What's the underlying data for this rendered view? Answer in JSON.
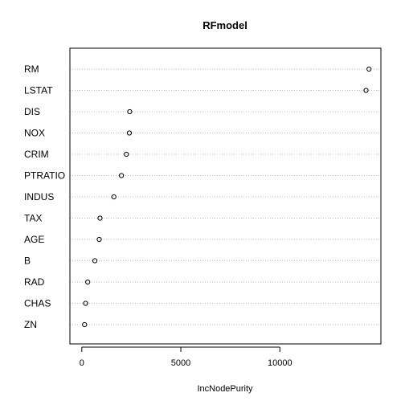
{
  "chart_data": {
    "type": "scatter",
    "title": "RFmodel",
    "xlabel": "IncNodePurity",
    "ylabel": "",
    "categories": [
      "RM",
      "LSTAT",
      "DIS",
      "NOX",
      "CRIM",
      "PTRATIO",
      "INDUS",
      "TAX",
      "AGE",
      "B",
      "RAD",
      "CHAS",
      "ZN"
    ],
    "values": [
      14500,
      14350,
      2420,
      2400,
      2250,
      2000,
      1620,
      920,
      880,
      660,
      300,
      190,
      140
    ],
    "xlim": [
      -600,
      15100
    ],
    "xticks": [
      0,
      5000,
      10000
    ],
    "grid": "dotted horizontal guide lines per category",
    "colors": {
      "points": "#000000",
      "guides": "#bebebe",
      "frame": "#000000"
    }
  }
}
